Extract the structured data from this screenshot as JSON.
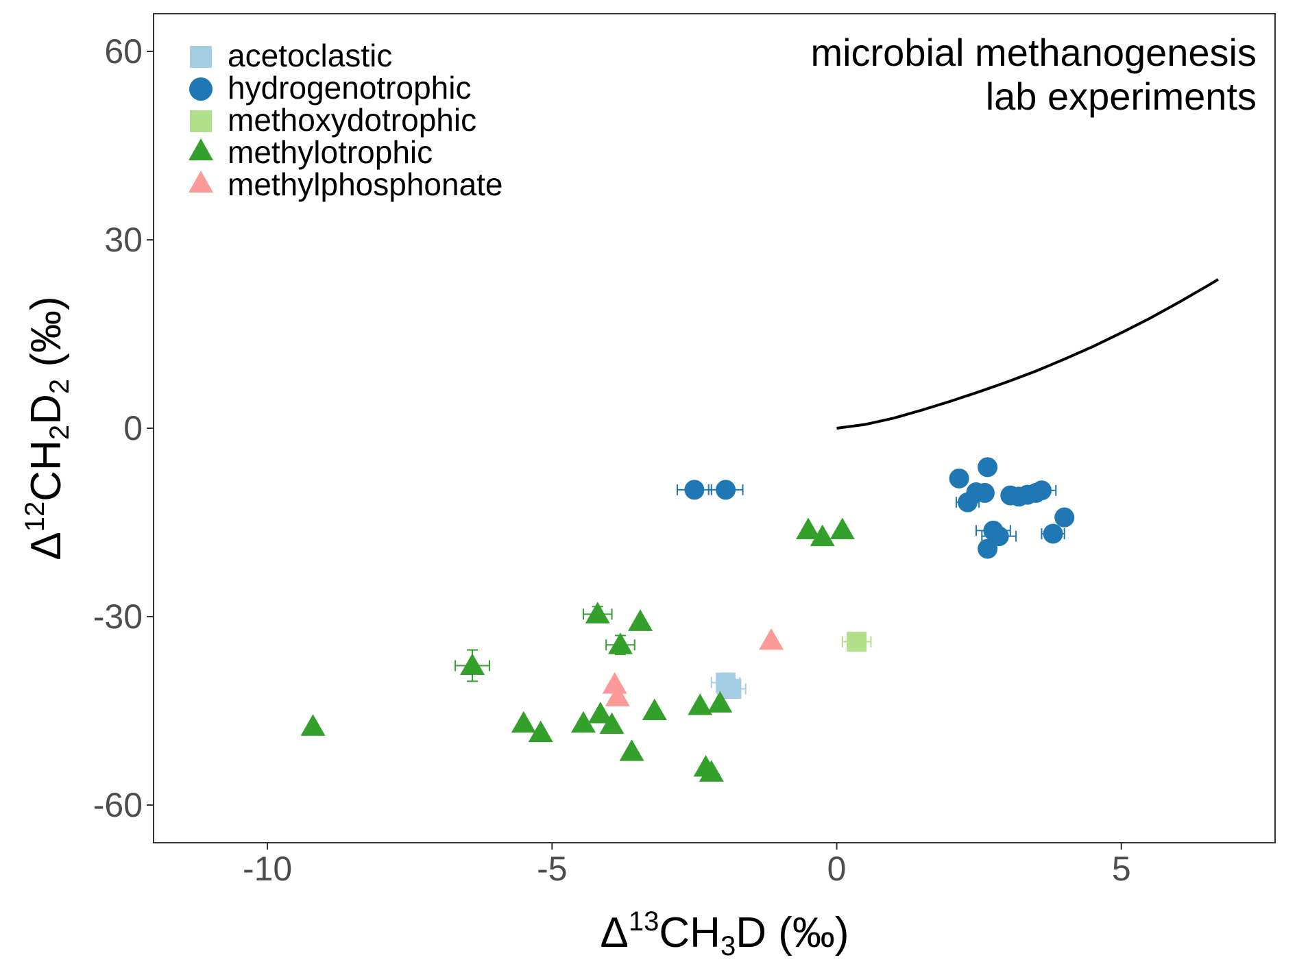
{
  "chart_data": {
    "type": "scatter",
    "xlim": [
      -12,
      7.7
    ],
    "ylim": [
      -66,
      66
    ],
    "x_ticks": [
      -10,
      -5,
      0,
      5
    ],
    "y_ticks": [
      60,
      30,
      0,
      -30,
      -60
    ],
    "x_tick_labels": [
      "-10",
      "-5",
      "0",
      "5"
    ],
    "y_tick_labels": [
      "60",
      "30",
      "0",
      "-30",
      "-60"
    ],
    "xlabel": {
      "prefix": "Δ",
      "sup": "13",
      "main": "CH",
      "sub": "3",
      "suffix": "D (‰)"
    },
    "ylabel": {
      "prefix": "Δ",
      "sup": "12",
      "main1": "CH",
      "sub1": "2",
      "main2": "D",
      "sub2": "2",
      "suffix": " (‰)"
    },
    "annotation": [
      "microbial methanogenesis",
      "lab experiments"
    ],
    "grid": false,
    "legend_position": "top-left",
    "series": [
      {
        "name": "acetoclastic",
        "marker": "square",
        "color": "#a6cee3",
        "points": [
          {
            "x": -1.95,
            "y": -40.5,
            "xerr": 0.25,
            "yerr": 1.5
          },
          {
            "x": -1.85,
            "y": -41.5,
            "xerr": 0.25,
            "yerr": 1.5
          }
        ]
      },
      {
        "name": "hydrogenotrophic",
        "marker": "circle",
        "color": "#1f78b4",
        "points": [
          {
            "x": -2.5,
            "y": -9.8,
            "xerr": 0.3
          },
          {
            "x": -1.95,
            "y": -9.8,
            "xerr": 0.3
          },
          {
            "x": 2.15,
            "y": -8.0
          },
          {
            "x": 2.3,
            "y": -11.8,
            "xerr": 0.2
          },
          {
            "x": 2.45,
            "y": -10.2
          },
          {
            "x": 2.6,
            "y": -10.3
          },
          {
            "x": 2.65,
            "y": -6.2
          },
          {
            "x": 2.65,
            "y": -19.2
          },
          {
            "x": 2.75,
            "y": -16.3,
            "xerr": 0.3
          },
          {
            "x": 2.85,
            "y": -17.2,
            "xerr": 0.3
          },
          {
            "x": 3.05,
            "y": -10.7
          },
          {
            "x": 3.2,
            "y": -10.9
          },
          {
            "x": 3.35,
            "y": -10.6
          },
          {
            "x": 3.5,
            "y": -10.3
          },
          {
            "x": 3.6,
            "y": -9.9,
            "xerr": 0.25
          },
          {
            "x": 3.8,
            "y": -16.8,
            "xerr": 0.2
          },
          {
            "x": 4.0,
            "y": -14.2
          }
        ]
      },
      {
        "name": "methoxydotrophic",
        "marker": "square",
        "color": "#b2df8a",
        "points": [
          {
            "x": 0.35,
            "y": -34.0,
            "xerr": 0.25
          }
        ]
      },
      {
        "name": "methylotrophic",
        "marker": "triangle",
        "color": "#33a02c",
        "points": [
          {
            "x": -9.2,
            "y": -47.5
          },
          {
            "x": -6.4,
            "y": -37.8,
            "xerr": 0.3,
            "yerr": 2.5
          },
          {
            "x": -5.5,
            "y": -47.0
          },
          {
            "x": -5.2,
            "y": -48.5
          },
          {
            "x": -4.45,
            "y": -47.0
          },
          {
            "x": -4.2,
            "y": -29.6,
            "xerr": 0.25,
            "yerr": 1.2
          },
          {
            "x": -4.15,
            "y": -45.5
          },
          {
            "x": -3.95,
            "y": -47.2
          },
          {
            "x": -3.8,
            "y": -34.5,
            "xerr": 0.25,
            "yerr": 1.5
          },
          {
            "x": -3.6,
            "y": -51.5
          },
          {
            "x": -3.45,
            "y": -30.8
          },
          {
            "x": -3.2,
            "y": -45.0
          },
          {
            "x": -2.4,
            "y": -44.2
          },
          {
            "x": -2.3,
            "y": -54.0
          },
          {
            "x": -2.2,
            "y": -54.8
          },
          {
            "x": -2.05,
            "y": -43.8
          },
          {
            "x": -0.5,
            "y": -16.2
          },
          {
            "x": -0.25,
            "y": -17.3
          },
          {
            "x": 0.1,
            "y": -16.2
          }
        ]
      },
      {
        "name": "methylphosphonate",
        "marker": "triangle",
        "color": "#fb9a99",
        "points": [
          {
            "x": -3.9,
            "y": -40.8
          },
          {
            "x": -3.85,
            "y": -42.8
          },
          {
            "x": -1.15,
            "y": -33.8
          }
        ]
      }
    ],
    "reference_line": {
      "x": [
        0,
        0.5,
        1,
        1.5,
        2,
        2.5,
        3,
        3.5,
        4,
        4.5,
        5,
        5.5,
        6,
        6.5,
        6.7
      ],
      "y": [
        0,
        0.6,
        1.6,
        2.9,
        4.3,
        5.8,
        7.4,
        9.1,
        11.0,
        13.0,
        15.2,
        17.5,
        20.0,
        22.6,
        23.7
      ]
    }
  }
}
